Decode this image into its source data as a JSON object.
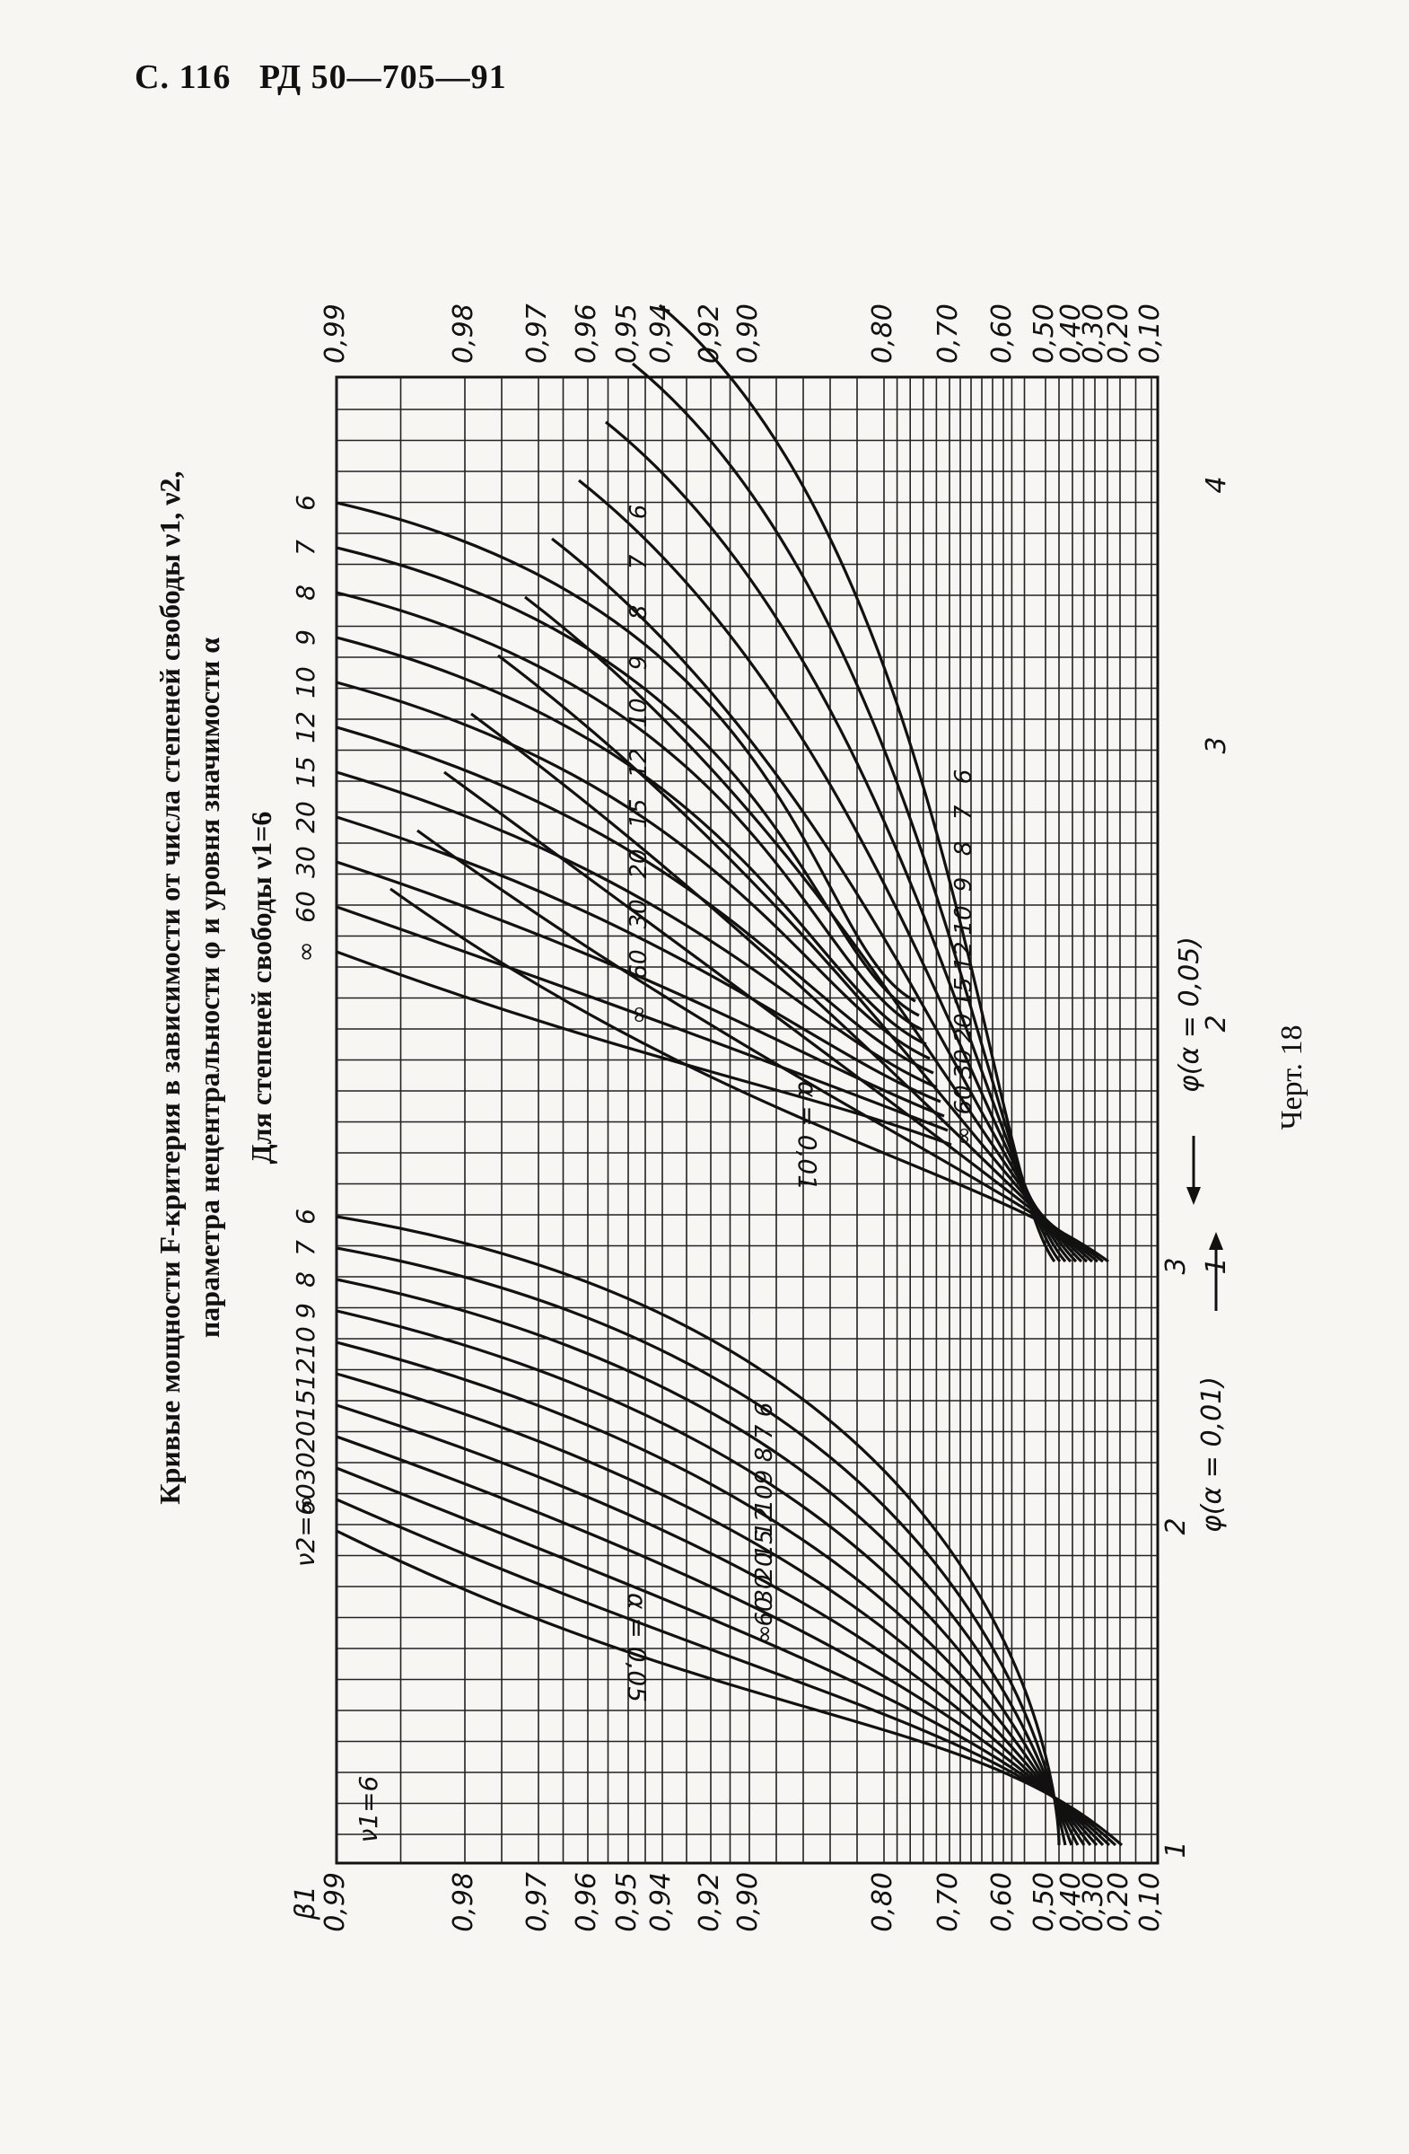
{
  "header": {
    "prefix": "С. 116",
    "code": "РД 50—705—91"
  },
  "title_line1": "Кривые мощности F-критерия в зависимости от числа степеней свободы ν1, ν2,",
  "title_line2": "параметра нецентральности φ и уровня значимости α",
  "title_line3": "Для степеней свободы ν1=6",
  "caption": "Черт. 18",
  "chart_data": {
    "type": "line",
    "beta_label": "β1",
    "y_ticks": [
      0.99,
      0.98,
      0.97,
      0.96,
      0.95,
      0.94,
      0.92,
      0.9,
      0.8,
      0.7,
      0.6,
      0.5,
      0.4,
      0.3,
      0.2,
      0.1
    ],
    "y_tick_labels": [
      "0,99",
      "0,98",
      "0,97",
      "0,96",
      "0,95",
      "0,94",
      "0,92",
      "0,90",
      "0,80",
      "0,70",
      "0,60",
      "0,50",
      "0,40",
      "0,30",
      "0,20",
      "0,10"
    ],
    "y_tick_labels_right": [
      "0,99",
      "0,98",
      "0,97",
      "0,96",
      "0,95",
      "0,94",
      "0,92",
      "0,90",
      "0,80",
      "0,70",
      "0,60",
      "0,50",
      "0,40",
      "0,30",
      "0,20",
      "0,10"
    ],
    "x_bottom_ticks": [
      1,
      2,
      3
    ],
    "x_bottom_label": "φ(α = 0,01)",
    "x_top_ticks": [
      1,
      2,
      3,
      4
    ],
    "x_top_label": "φ(α = 0,05)",
    "v1_label": "ν1=6",
    "panels": [
      {
        "alpha_label": "α = 0,05",
        "v2": [
          "∞",
          "60",
          "30",
          "20",
          "15",
          "12",
          "10",
          "9",
          "8",
          "7",
          "6"
        ],
        "top_labels": [
          "ν2=∞",
          "60",
          "30",
          "20",
          "15",
          "12",
          "10",
          "9",
          "8",
          "7",
          "6"
        ],
        "inline_labels": [
          "∞",
          "60",
          "30",
          "20",
          "15",
          "12",
          "10",
          "9",
          "8",
          "7",
          "6"
        ]
      },
      {
        "alpha_label": "α = 0,01",
        "v2": [
          "∞",
          "60",
          "30",
          "20",
          "15",
          "12",
          "10",
          "9",
          "8",
          "7",
          "6"
        ],
        "top_labels": [
          "∞",
          "60",
          "30",
          "20",
          "15",
          "12",
          "10",
          "9",
          "8",
          "7",
          "6"
        ],
        "inline_labels_a": [
          "∞",
          "60",
          "30",
          "20",
          "15",
          "12",
          "10",
          "9",
          "8",
          "7",
          "6"
        ],
        "inline_labels_b": [
          "∞",
          "60",
          "30",
          "20",
          "15",
          "12",
          "10",
          "9",
          "8",
          "7",
          "6"
        ]
      }
    ]
  }
}
